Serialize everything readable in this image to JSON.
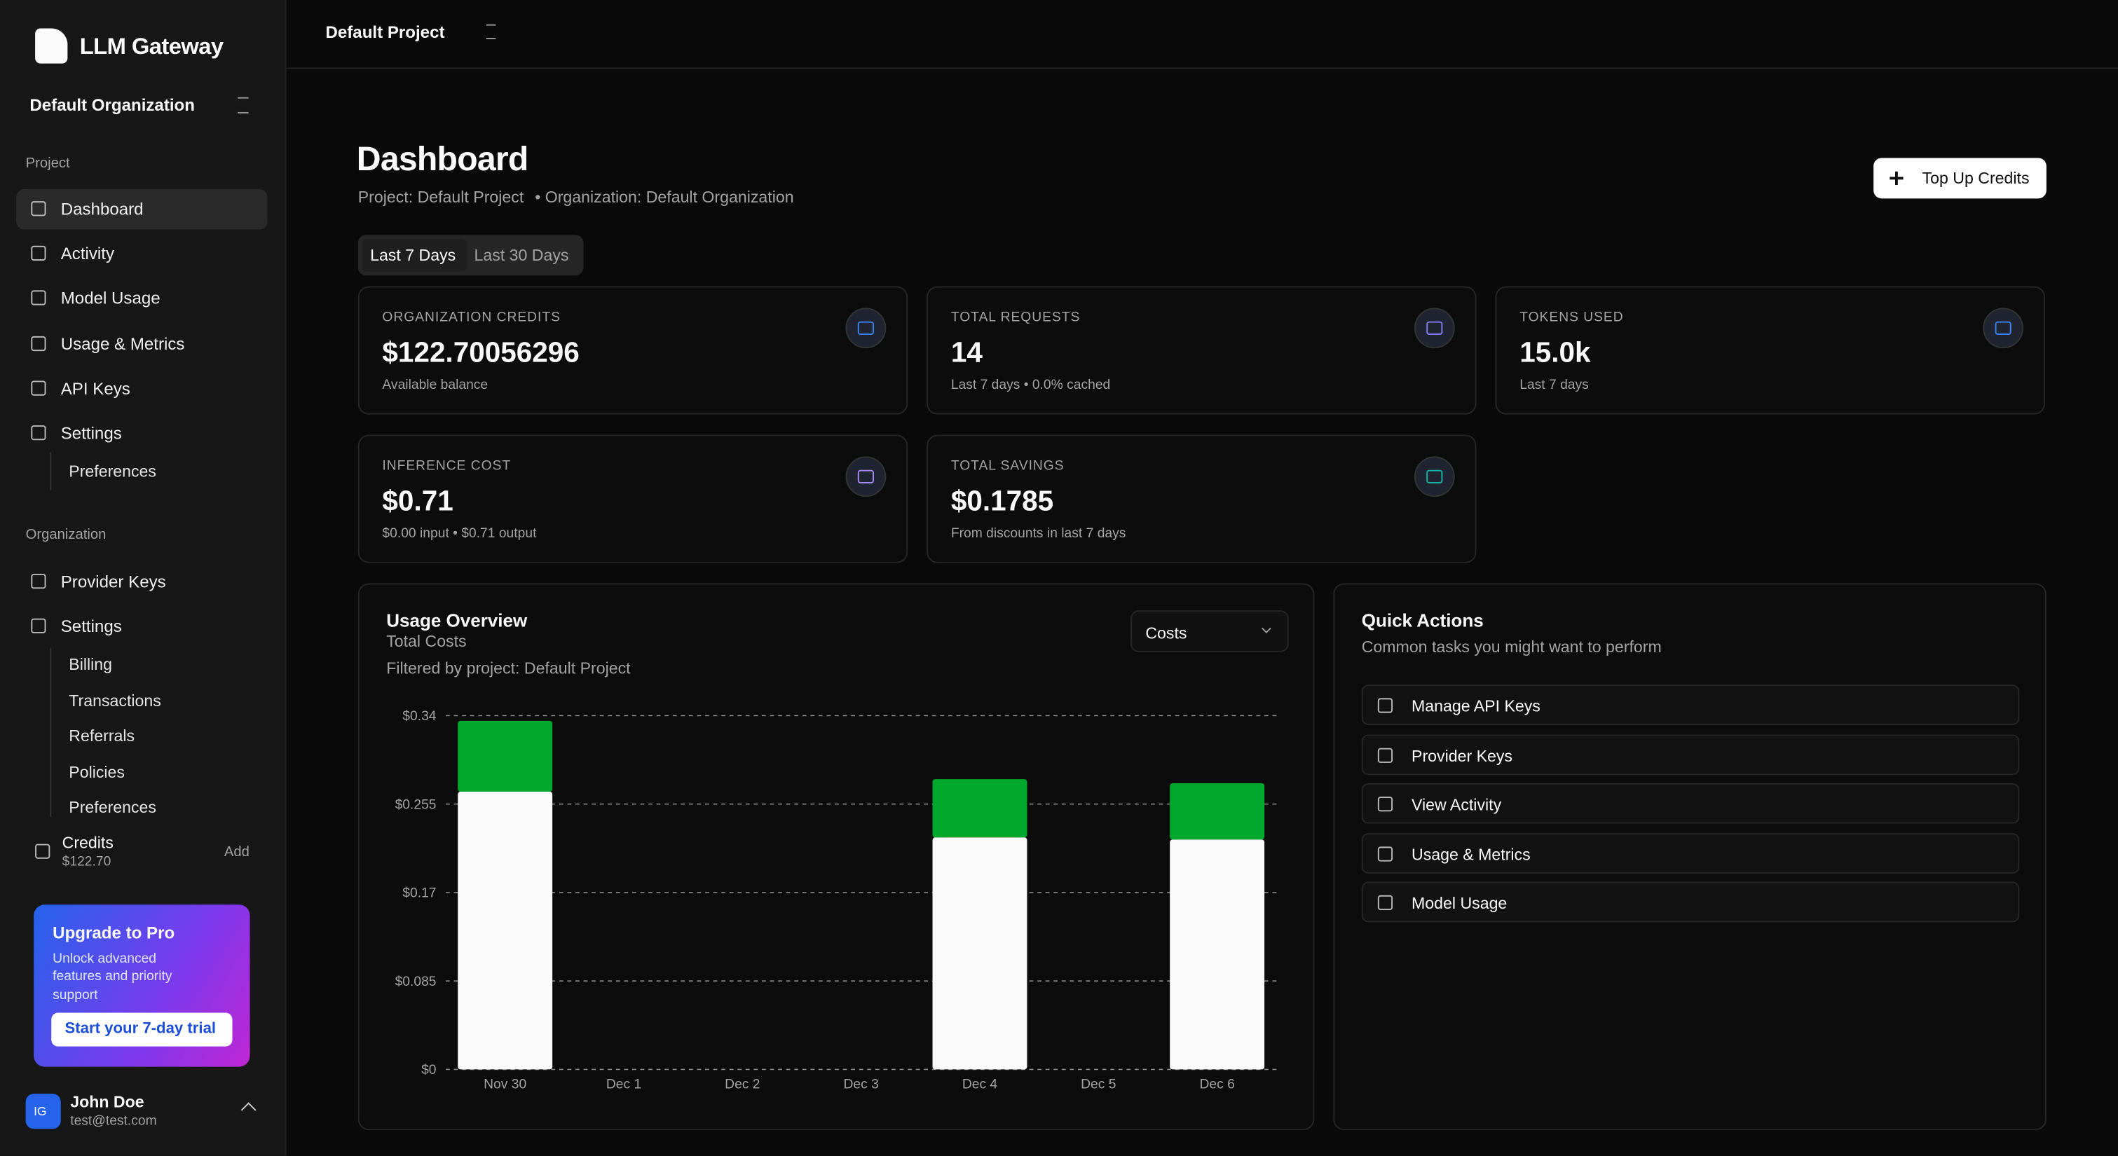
{
  "sidebar": {
    "brand": "LLM Gateway",
    "organization": "Default Organization",
    "project_section": "Project",
    "project_nav": [
      "Dashboard",
      "Activity",
      "Model Usage",
      "Usage & Metrics",
      "API Keys",
      "Settings"
    ],
    "project_sub": [
      "Preferences"
    ],
    "org_section": "Organization",
    "org_nav": [
      "Provider Keys",
      "Settings"
    ],
    "org_sub": [
      "Billing",
      "Transactions",
      "Referrals",
      "Policies",
      "Preferences"
    ],
    "credits": {
      "label": "Credits",
      "amount": "$122.70",
      "action": "Add"
    },
    "upgrade": {
      "title": "Upgrade to Pro",
      "text": "Unlock advanced features and priority support",
      "button": "Start your 7-day trial"
    },
    "user": {
      "initials": "IG",
      "name": "John Doe",
      "email": "test@test.com"
    }
  },
  "topbar": {
    "project": "Default Project"
  },
  "header": {
    "title": "Dashboard",
    "project": "Project: Default Project",
    "organization": "• Organization: Default Organization",
    "button": "Top Up Credits"
  },
  "range_tabs": [
    "Last 7 Days",
    "Last 30 Days"
  ],
  "stats": [
    {
      "label": "ORGANIZATION CREDITS",
      "value": "$122.70056296",
      "note": "Available balance"
    },
    {
      "label": "TOTAL REQUESTS",
      "value": "14",
      "note": "Last 7 days • 0.0% cached"
    },
    {
      "label": "TOKENS USED",
      "value": "15.0k",
      "note": "Last 7 days"
    },
    {
      "label": "INFERENCE COST",
      "value": "$0.71",
      "note": "$0.00 input • $0.71 output"
    },
    {
      "label": "TOTAL SAVINGS",
      "value": "$0.1785",
      "note": "From discounts in last 7 days"
    }
  ],
  "usage": {
    "title": "Usage Overview",
    "subtitle": "Total Costs",
    "filter": "Filtered by project: Default Project",
    "select": "Costs"
  },
  "quick_actions": {
    "title": "Quick Actions",
    "subtitle": "Common tasks you might want to perform",
    "items": [
      "Manage API Keys",
      "Provider Keys",
      "View Activity",
      "Usage & Metrics",
      "Model Usage"
    ]
  },
  "chart_data": {
    "type": "bar",
    "stacked": true,
    "categories": [
      "Nov 30",
      "Dec 1",
      "Dec 2",
      "Dec 3",
      "Dec 4",
      "Dec 5",
      "Dec 6"
    ],
    "series": [
      {
        "color": "#fafafa",
        "values": [
          0.267,
          0,
          0,
          0,
          0.223,
          0,
          0.221
        ]
      },
      {
        "color": "#00a82d",
        "values": [
          0.068,
          0,
          0,
          0,
          0.056,
          0,
          0.054
        ]
      }
    ],
    "ylim": [
      0,
      0.34
    ],
    "yticks": [
      {
        "value": 0,
        "label": "$0"
      },
      {
        "value": 0.085,
        "label": "$0.085"
      },
      {
        "value": 0.17,
        "label": "$0.17"
      },
      {
        "value": 0.255,
        "label": "$0.255"
      },
      {
        "value": 0.34,
        "label": "$0.34"
      }
    ],
    "grid": true
  }
}
